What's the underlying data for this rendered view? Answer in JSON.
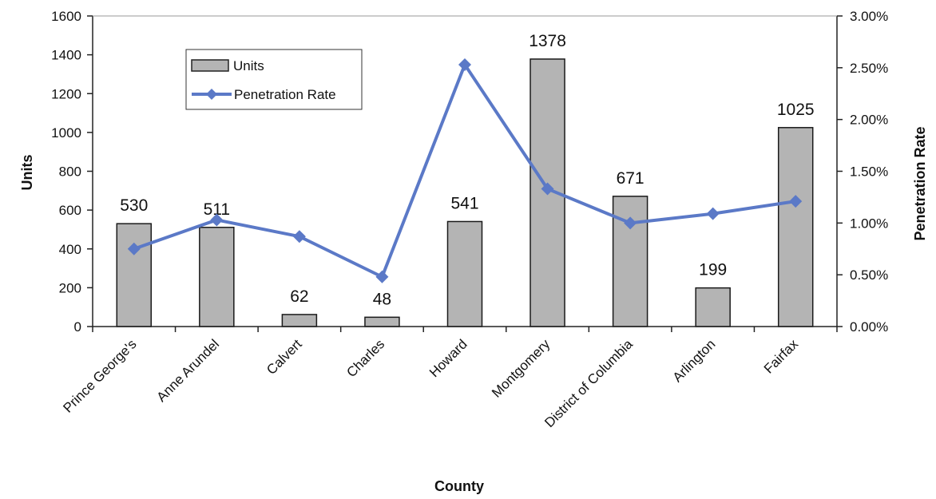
{
  "chart_data": {
    "type": "bar+line",
    "categories": [
      "Prince George's",
      "Anne Arundel",
      "Calvert",
      "Charles",
      "Howard",
      "Montgomery",
      "District of Columbia",
      "Arlington",
      "Fairfax"
    ],
    "series": [
      {
        "name": "Units",
        "type": "bar",
        "axis": "left",
        "values": [
          530,
          511,
          62,
          48,
          541,
          1378,
          671,
          199,
          1025
        ],
        "labels": [
          "530",
          "511",
          "62",
          "48",
          "541",
          "1378",
          "671",
          "199",
          "1025"
        ],
        "color": "#b4b4b4"
      },
      {
        "name": "Penetration Rate",
        "type": "line",
        "axis": "right",
        "values": [
          0.0075,
          0.0103,
          0.0087,
          0.0048,
          0.0253,
          0.0133,
          0.01,
          0.0109,
          0.0121
        ],
        "color": "#5b79c7"
      }
    ],
    "xlabel": "County",
    "ylabel_left": "Units",
    "ylabel_right": "Penetration Rate",
    "ylim_left": [
      0,
      1600
    ],
    "ylim_right": [
      0,
      0.03
    ],
    "yticks_left": [
      "0",
      "200",
      "400",
      "600",
      "800",
      "1000",
      "1200",
      "1400",
      "1600"
    ],
    "yticks_right": [
      "0.00%",
      "0.50%",
      "1.00%",
      "1.50%",
      "2.00%",
      "2.50%",
      "3.00%"
    ],
    "legend_position": "top-left",
    "grid": false
  }
}
